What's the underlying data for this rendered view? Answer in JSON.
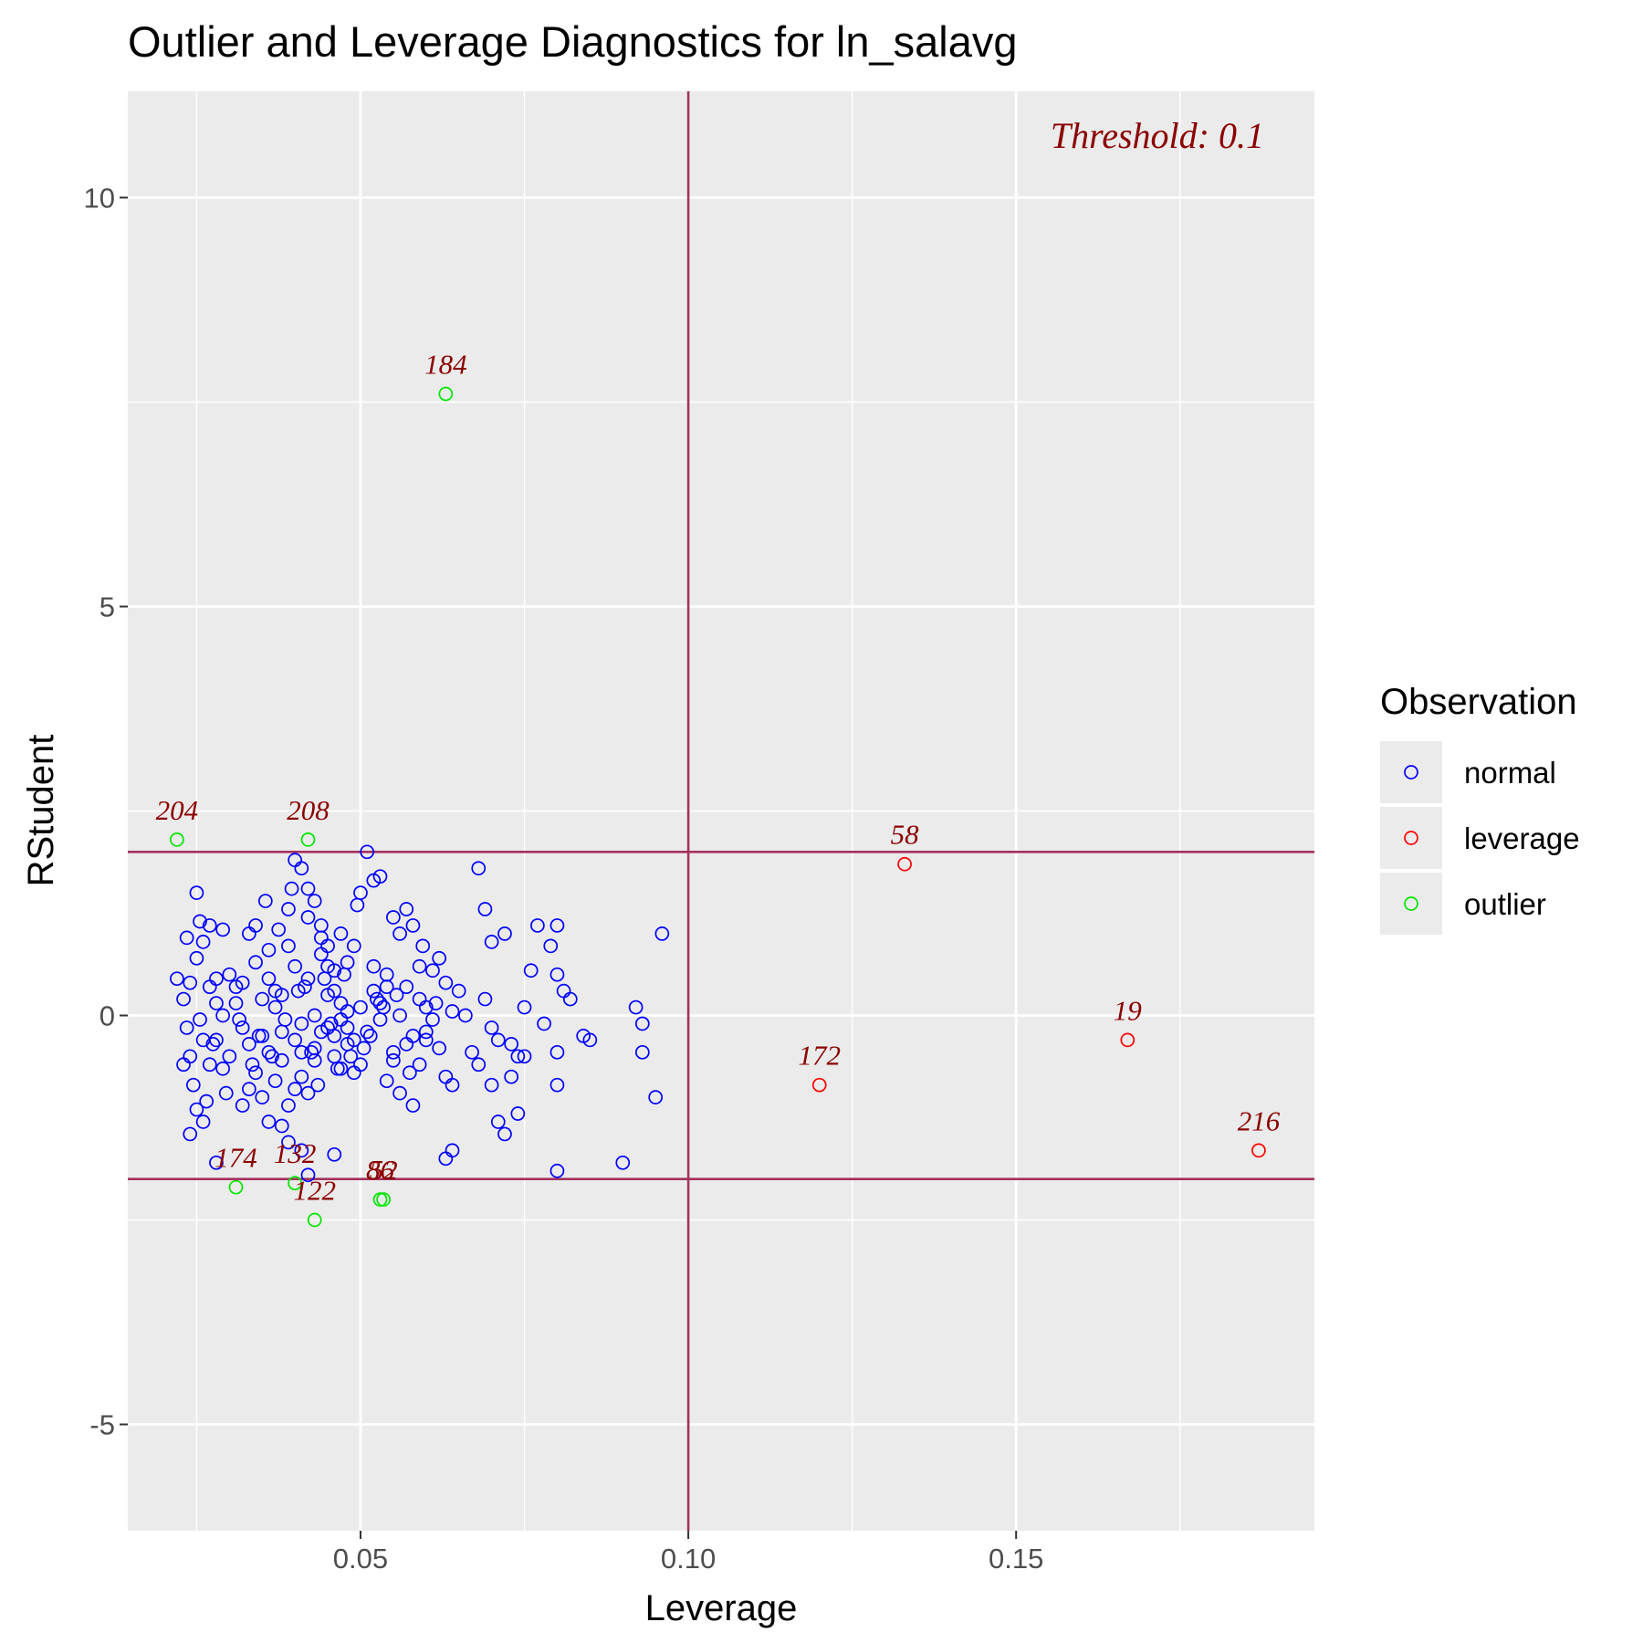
{
  "chart_data": {
    "type": "scatter",
    "title": "Outlier and Leverage Diagnostics for ln_salavg",
    "xlabel": "Leverage",
    "ylabel": "RStudent",
    "xlim": [
      0.0145,
      0.1955
    ],
    "ylim": [
      -6.3,
      11.3
    ],
    "x_ticks": [
      0.05,
      0.1,
      0.15
    ],
    "x_tick_labels": [
      "0.05",
      "0.10",
      "0.15"
    ],
    "y_ticks": [
      -5,
      0,
      5,
      10
    ],
    "y_tick_labels": [
      "-5",
      "0",
      "5",
      "10"
    ],
    "grid": true,
    "threshold_lines": {
      "x": [
        0.1
      ],
      "y": [
        -2,
        2
      ],
      "color": "#a3325e"
    },
    "annotation": "Threshold: 0.1",
    "legend": {
      "title": "Observation",
      "position": "right",
      "entries": [
        {
          "label": "normal",
          "color": "#0000ff"
        },
        {
          "label": "leverage",
          "color": "#ff0000"
        },
        {
          "label": "outlier",
          "color": "#00e600"
        }
      ]
    },
    "series": [
      {
        "name": "normal",
        "color": "#0000ff",
        "points": [
          [
            0.022,
            0.45
          ],
          [
            0.023,
            0.2
          ],
          [
            0.024,
            -0.5
          ],
          [
            0.0235,
            -0.15
          ],
          [
            0.025,
            1.5
          ],
          [
            0.026,
            0.9
          ],
          [
            0.027,
            1.1
          ],
          [
            0.0255,
            -0.05
          ],
          [
            0.028,
            -0.3
          ],
          [
            0.026,
            -1.3
          ],
          [
            0.024,
            -1.45
          ],
          [
            0.025,
            -1.15
          ],
          [
            0.028,
            0.45
          ],
          [
            0.027,
            0.35
          ],
          [
            0.029,
            1.05
          ],
          [
            0.03,
            0.5
          ],
          [
            0.0245,
            -0.85
          ],
          [
            0.0265,
            -1.05
          ],
          [
            0.029,
            -0.65
          ],
          [
            0.031,
            0.15
          ],
          [
            0.032,
            0.4
          ],
          [
            0.033,
            -0.35
          ],
          [
            0.034,
            1.1
          ],
          [
            0.035,
            0.2
          ],
          [
            0.036,
            -0.45
          ],
          [
            0.037,
            0.1
          ],
          [
            0.038,
            -0.2
          ],
          [
            0.033,
            1.0
          ],
          [
            0.034,
            -0.7
          ],
          [
            0.035,
            -0.25
          ],
          [
            0.036,
            0.8
          ],
          [
            0.037,
            0.3
          ],
          [
            0.038,
            -0.55
          ],
          [
            0.039,
            1.3
          ],
          [
            0.04,
            0.6
          ],
          [
            0.041,
            -0.1
          ],
          [
            0.042,
            0.45
          ],
          [
            0.043,
            -0.4
          ],
          [
            0.044,
            0.75
          ],
          [
            0.045,
            -0.15
          ],
          [
            0.046,
            0.3
          ],
          [
            0.047,
            -0.65
          ],
          [
            0.048,
            0.05
          ],
          [
            0.049,
            -0.3
          ],
          [
            0.05,
            0.1
          ],
          [
            0.04,
            1.9
          ],
          [
            0.041,
            1.8
          ],
          [
            0.042,
            1.55
          ],
          [
            0.043,
            1.4
          ],
          [
            0.044,
            1.1
          ],
          [
            0.045,
            0.85
          ],
          [
            0.046,
            0.55
          ],
          [
            0.047,
            -0.05
          ],
          [
            0.048,
            -0.35
          ],
          [
            0.049,
            -0.7
          ],
          [
            0.038,
            -1.35
          ],
          [
            0.039,
            -1.1
          ],
          [
            0.04,
            -0.9
          ],
          [
            0.041,
            -0.75
          ],
          [
            0.042,
            -0.95
          ],
          [
            0.043,
            -0.55
          ],
          [
            0.044,
            -0.2
          ],
          [
            0.045,
            0.25
          ],
          [
            0.046,
            -0.5
          ],
          [
            0.047,
            1.0
          ],
          [
            0.048,
            0.65
          ],
          [
            0.05,
            1.5
          ],
          [
            0.052,
            1.65
          ],
          [
            0.051,
            2.0
          ],
          [
            0.053,
            1.7
          ],
          [
            0.052,
            0.3
          ],
          [
            0.053,
            0.15
          ],
          [
            0.054,
            0.5
          ],
          [
            0.055,
            -0.45
          ],
          [
            0.056,
            0.0
          ],
          [
            0.057,
            0.35
          ],
          [
            0.058,
            -0.25
          ],
          [
            0.059,
            0.2
          ],
          [
            0.06,
            -0.3
          ],
          [
            0.061,
            0.55
          ],
          [
            0.055,
            1.2
          ],
          [
            0.056,
            1.0
          ],
          [
            0.057,
            1.3
          ],
          [
            0.058,
            1.1
          ],
          [
            0.059,
            0.6
          ],
          [
            0.06,
            0.1
          ],
          [
            0.061,
            -0.05
          ],
          [
            0.062,
            0.7
          ],
          [
            0.063,
            0.4
          ],
          [
            0.064,
            0.05
          ],
          [
            0.054,
            -0.8
          ],
          [
            0.055,
            -0.55
          ],
          [
            0.056,
            -0.95
          ],
          [
            0.057,
            -0.35
          ],
          [
            0.058,
            -1.1
          ],
          [
            0.059,
            -0.6
          ],
          [
            0.06,
            -0.2
          ],
          [
            0.062,
            -0.4
          ],
          [
            0.063,
            -0.75
          ],
          [
            0.064,
            -0.85
          ],
          [
            0.065,
            0.3
          ],
          [
            0.066,
            0.0
          ],
          [
            0.067,
            -0.45
          ],
          [
            0.068,
            -0.6
          ],
          [
            0.069,
            0.2
          ],
          [
            0.07,
            -0.15
          ],
          [
            0.071,
            -0.3
          ],
          [
            0.068,
            1.8
          ],
          [
            0.069,
            1.3
          ],
          [
            0.07,
            0.9
          ],
          [
            0.072,
            1.0
          ],
          [
            0.073,
            -0.35
          ],
          [
            0.074,
            -0.5
          ],
          [
            0.075,
            0.1
          ],
          [
            0.076,
            0.55
          ],
          [
            0.077,
            1.1
          ],
          [
            0.078,
            -0.1
          ],
          [
            0.079,
            0.85
          ],
          [
            0.08,
            1.1
          ],
          [
            0.08,
            0.5
          ],
          [
            0.081,
            0.3
          ],
          [
            0.082,
            0.2
          ],
          [
            0.07,
            -0.85
          ],
          [
            0.071,
            -1.3
          ],
          [
            0.072,
            -1.45
          ],
          [
            0.073,
            -0.75
          ],
          [
            0.074,
            -1.2
          ],
          [
            0.075,
            -0.5
          ],
          [
            0.08,
            -0.45
          ],
          [
            0.08,
            -0.85
          ],
          [
            0.084,
            -0.25
          ],
          [
            0.085,
            -0.3
          ],
          [
            0.064,
            -1.65
          ],
          [
            0.063,
            -1.75
          ],
          [
            0.08,
            -1.9
          ],
          [
            0.09,
            -1.8
          ],
          [
            0.092,
            0.1
          ],
          [
            0.093,
            -0.1
          ],
          [
            0.093,
            -0.45
          ],
          [
            0.095,
            -1.0
          ],
          [
            0.096,
            1.0
          ],
          [
            0.028,
            -1.8
          ],
          [
            0.032,
            -1.1
          ],
          [
            0.036,
            -1.3
          ],
          [
            0.039,
            -1.55
          ],
          [
            0.041,
            -1.65
          ],
          [
            0.042,
            -1.95
          ],
          [
            0.046,
            -1.7
          ],
          [
            0.05,
            -0.6
          ],
          [
            0.051,
            -0.2
          ],
          [
            0.052,
            0.6
          ],
          [
            0.053,
            -0.05
          ],
          [
            0.054,
            0.35
          ],
          [
            0.049,
            0.85
          ],
          [
            0.048,
            -0.15
          ],
          [
            0.047,
            0.15
          ],
          [
            0.046,
            -0.25
          ],
          [
            0.045,
            0.6
          ],
          [
            0.044,
            0.95
          ],
          [
            0.043,
            0.0
          ],
          [
            0.042,
            1.2
          ],
          [
            0.041,
            -0.45
          ],
          [
            0.04,
            -0.3
          ],
          [
            0.039,
            0.85
          ],
          [
            0.038,
            0.25
          ],
          [
            0.037,
            -0.8
          ],
          [
            0.036,
            0.45
          ],
          [
            0.035,
            -1.0
          ],
          [
            0.034,
            0.65
          ],
          [
            0.033,
            -0.9
          ],
          [
            0.032,
            -0.15
          ],
          [
            0.031,
            0.35
          ],
          [
            0.03,
            -0.5
          ],
          [
            0.029,
            0.0
          ],
          [
            0.028,
            0.15
          ],
          [
            0.027,
            -0.6
          ],
          [
            0.026,
            -0.3
          ],
          [
            0.025,
            0.7
          ],
          [
            0.024,
            0.4
          ],
          [
            0.023,
            -0.6
          ],
          [
            0.0235,
            0.95
          ],
          [
            0.0255,
            1.15
          ],
          [
            0.0275,
            -0.35
          ],
          [
            0.0295,
            -0.95
          ],
          [
            0.0315,
            -0.05
          ],
          [
            0.0335,
            -0.6
          ],
          [
            0.0355,
            1.4
          ],
          [
            0.0375,
            1.05
          ],
          [
            0.0395,
            1.55
          ],
          [
            0.0415,
            0.35
          ],
          [
            0.0435,
            -0.85
          ],
          [
            0.0455,
            -0.1
          ],
          [
            0.0475,
            0.5
          ],
          [
            0.0495,
            1.35
          ],
          [
            0.0515,
            -0.25
          ],
          [
            0.0535,
            0.1
          ],
          [
            0.0555,
            0.25
          ],
          [
            0.0575,
            -0.7
          ],
          [
            0.0595,
            0.85
          ],
          [
            0.0615,
            0.15
          ],
          [
            0.0345,
            -0.25
          ],
          [
            0.0365,
            -0.5
          ],
          [
            0.0385,
            -0.05
          ],
          [
            0.0405,
            0.3
          ],
          [
            0.0425,
            -0.45
          ],
          [
            0.0445,
            0.45
          ],
          [
            0.0465,
            -0.65
          ],
          [
            0.0485,
            -0.5
          ],
          [
            0.0505,
            -0.4
          ],
          [
            0.0525,
            0.2
          ]
        ]
      },
      {
        "name": "leverage",
        "color": "#ff0000",
        "points": [
          [
            0.133,
            1.85
          ],
          [
            0.12,
            -0.85
          ],
          [
            0.167,
            -0.3
          ],
          [
            0.187,
            -1.65
          ]
        ],
        "labels": [
          "58",
          "172",
          "19",
          "216"
        ]
      },
      {
        "name": "outlier",
        "color": "#00e600",
        "points": [
          [
            0.063,
            7.6
          ],
          [
            0.022,
            2.15
          ],
          [
            0.042,
            2.15
          ],
          [
            0.031,
            -2.1
          ],
          [
            0.04,
            -2.05
          ],
          [
            0.043,
            -2.5
          ],
          [
            0.053,
            -2.25
          ],
          [
            0.0535,
            -2.25
          ]
        ],
        "labels": [
          "184",
          "204",
          "208",
          "174",
          "132",
          "122",
          "86",
          "52"
        ]
      }
    ]
  }
}
